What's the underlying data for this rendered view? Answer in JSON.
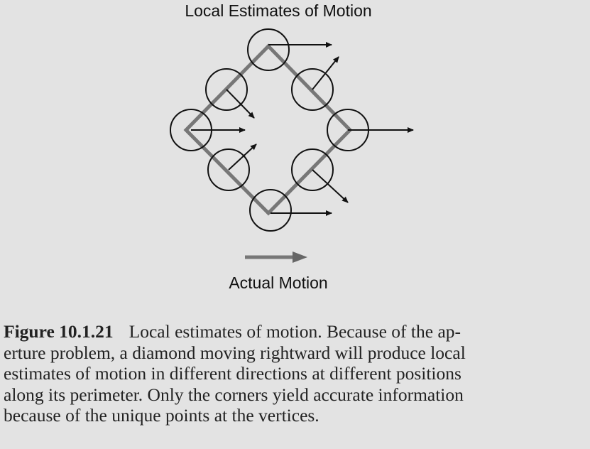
{
  "figure": {
    "title": "Local Estimates of Motion",
    "actual_motion_label": "Actual Motion",
    "caption_number": "Figure 10.1.21",
    "caption_lines": [
      "Local estimates of motion. Because of the ap-",
      "erture problem, a diamond moving rightward will produce local",
      "estimates of motion in different directions at different positions",
      "along its perimeter. Only the corners yield accurate information",
      "because of the unique points at the vertices."
    ]
  },
  "colors": {
    "background": "#e3e3e3",
    "diamond_edge": "#777777",
    "ink": "#111111"
  }
}
